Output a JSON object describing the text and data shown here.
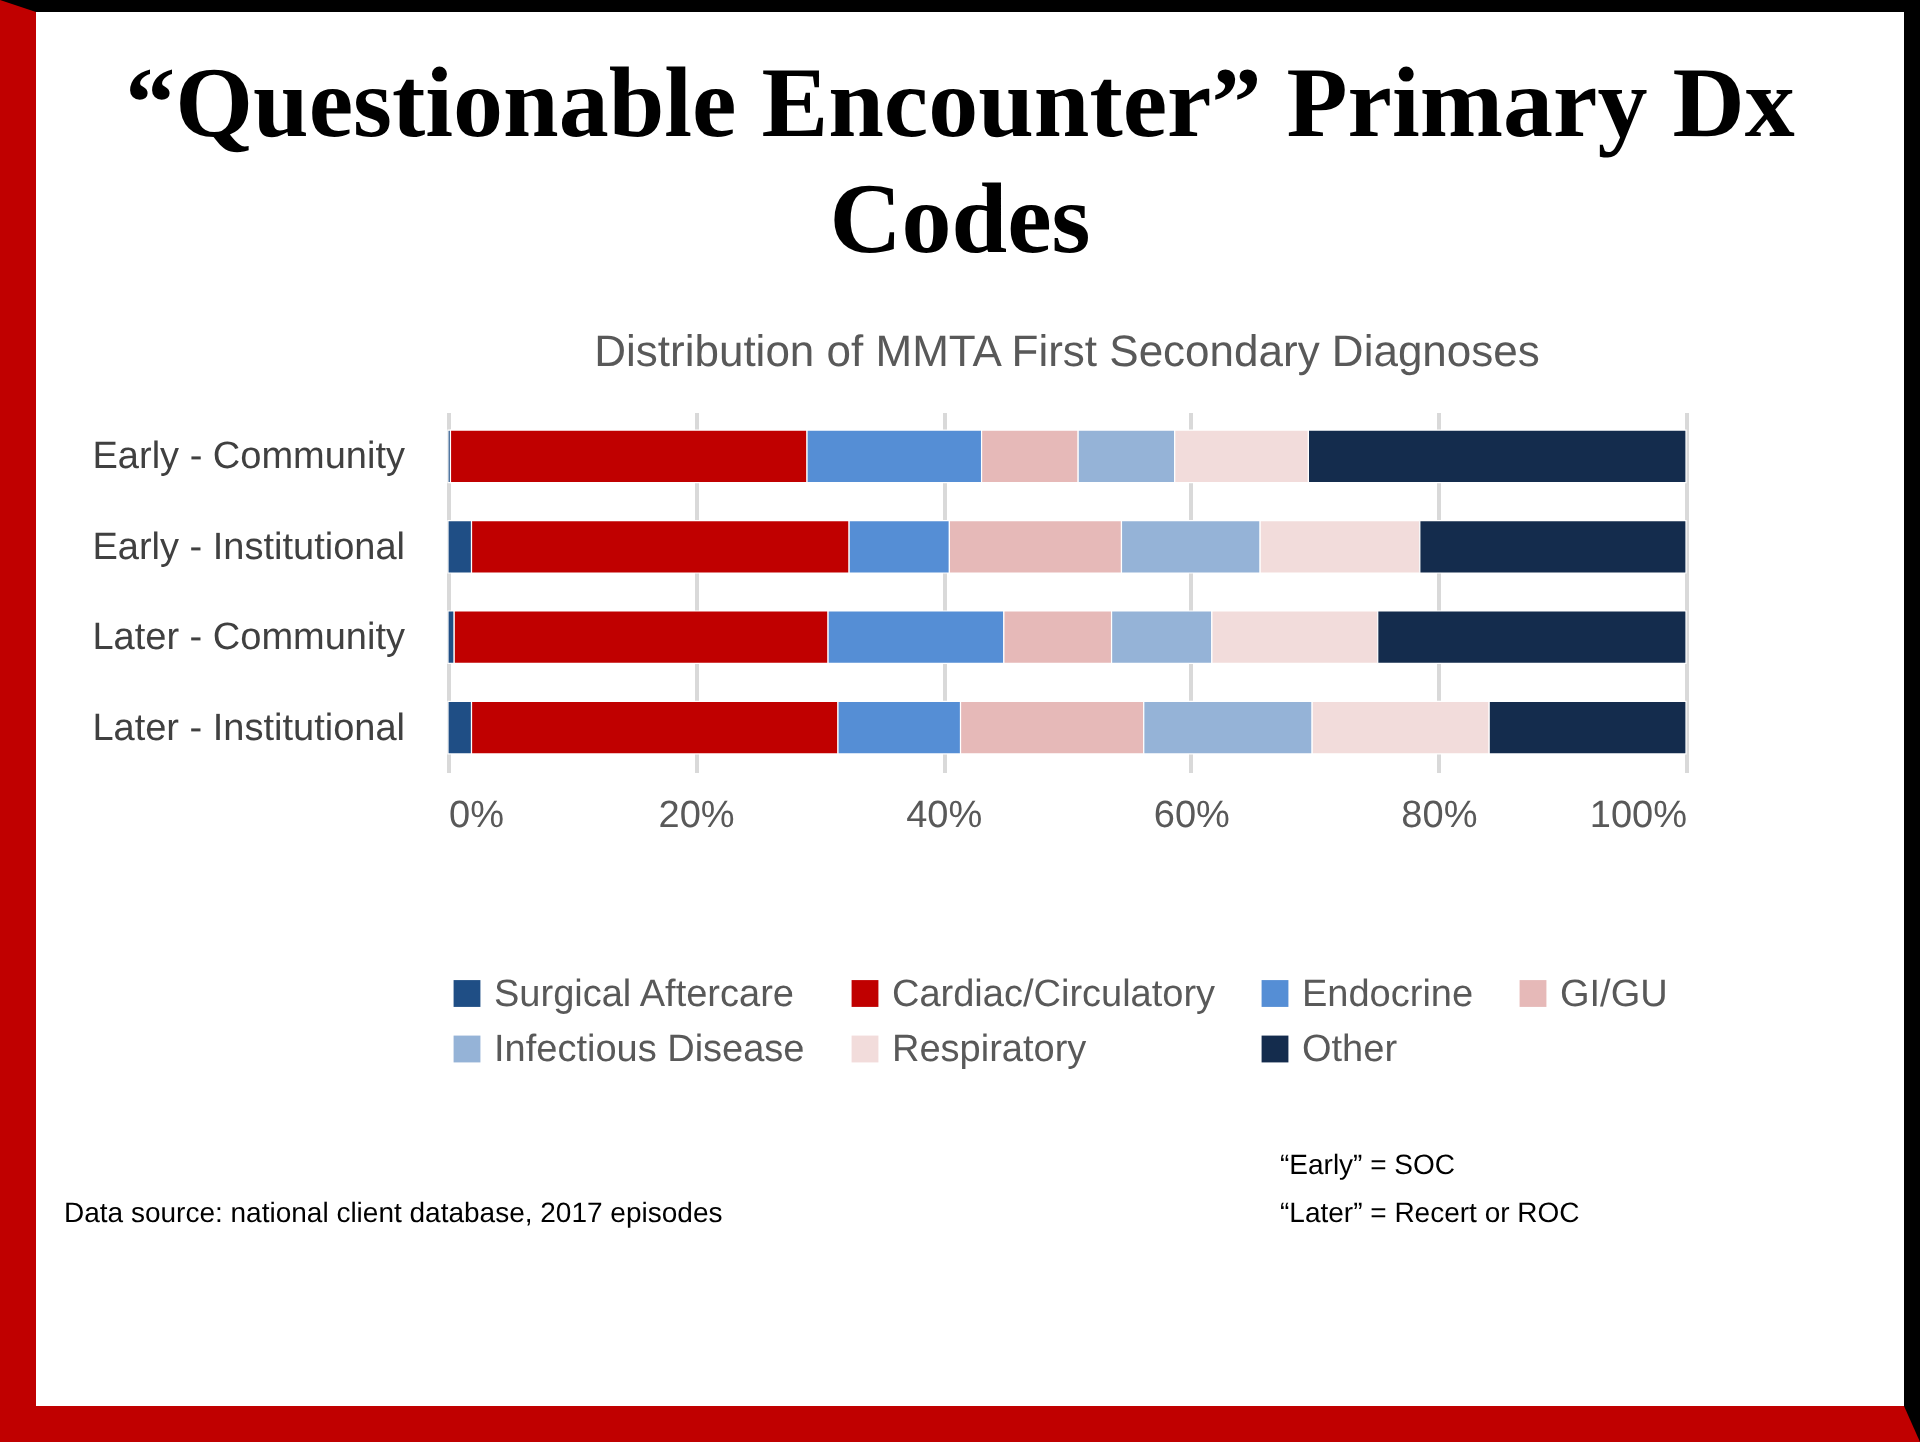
{
  "chart_data": {
    "type": "bar",
    "orientation": "horizontal",
    "stacked": true,
    "title": "“Questionable Encounter” Primary Dx Codes",
    "subtitle": "Distribution of MMTA First Secondary Diagnoses",
    "categories": [
      "Early - Community",
      "Early - Institutional",
      "Later - Community",
      "Later - Institutional"
    ],
    "series": [
      {
        "name": "Surgical Aftercare",
        "color": "#1f4e85",
        "values": [
          0.2,
          1.9,
          0.5,
          1.9
        ]
      },
      {
        "name": "Cardiac/Circulatory",
        "color": "#c00000",
        "values": [
          28.8,
          30.5,
          30.2,
          29.6
        ]
      },
      {
        "name": "Endocrine",
        "color": "#558ed5",
        "values": [
          14.1,
          8.1,
          14.2,
          9.9
        ]
      },
      {
        "name": "GI/GU",
        "color": "#e6b9b8",
        "values": [
          7.8,
          13.9,
          8.7,
          14.8
        ]
      },
      {
        "name": "Infectious Disease",
        "color": "#95b3d7",
        "values": [
          7.8,
          11.2,
          8.1,
          13.6
        ]
      },
      {
        "name": "Respiratory",
        "color": "#f2dcdb",
        "values": [
          10.8,
          12.9,
          13.4,
          14.3
        ]
      },
      {
        "name": "Other",
        "color": "#142c4d",
        "values": [
          30.5,
          21.5,
          24.9,
          15.9
        ]
      }
    ],
    "xlim": [
      0,
      100
    ],
    "xticks": [
      {
        "value": 0,
        "label": "0%"
      },
      {
        "value": 20,
        "label": "20%"
      },
      {
        "value": 40,
        "label": "40%"
      },
      {
        "value": 60,
        "label": "60%"
      },
      {
        "value": 80,
        "label": "80%"
      },
      {
        "value": 100,
        "label": "100%"
      }
    ],
    "grid": "x",
    "legend": "bottom",
    "annotations": [
      "Data source: national client database, 2017 episodes",
      "“Early” = SOC",
      "“Later” = Recert or ROC"
    ]
  }
}
